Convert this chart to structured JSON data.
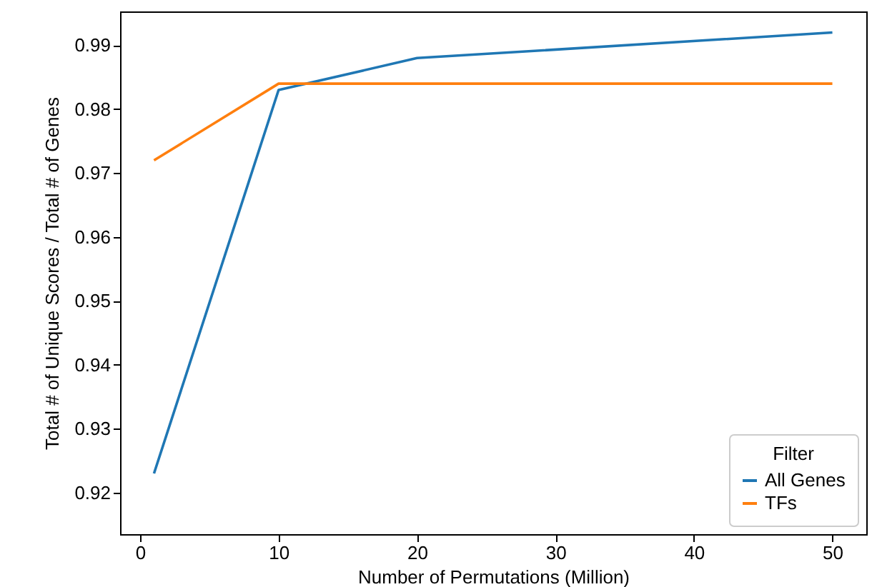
{
  "chart_data": {
    "type": "line",
    "xlabel": "Number of Permutations (Million)",
    "ylabel": "Total # of Unique Scores / Total # of Genes",
    "legend_title": "Filter",
    "legend": "bottom right",
    "grid": false,
    "x": [
      1,
      10,
      20,
      50
    ],
    "series": [
      {
        "name": "All Genes",
        "color": "#1f77b4",
        "values": [
          0.923,
          0.983,
          0.988,
          0.992
        ]
      },
      {
        "name": "TFs",
        "color": "#ff7f0e",
        "values": [
          0.972,
          0.984,
          0.984,
          0.984
        ]
      }
    ],
    "xlim": [
      -1.45,
      52.45
    ],
    "xticks": [
      0,
      10,
      20,
      30,
      40,
      50
    ],
    "ylim": [
      0.9135,
      0.9953
    ],
    "yticks": [
      0.92,
      0.93,
      0.94,
      0.95,
      0.96,
      0.97,
      0.98,
      0.99
    ]
  }
}
